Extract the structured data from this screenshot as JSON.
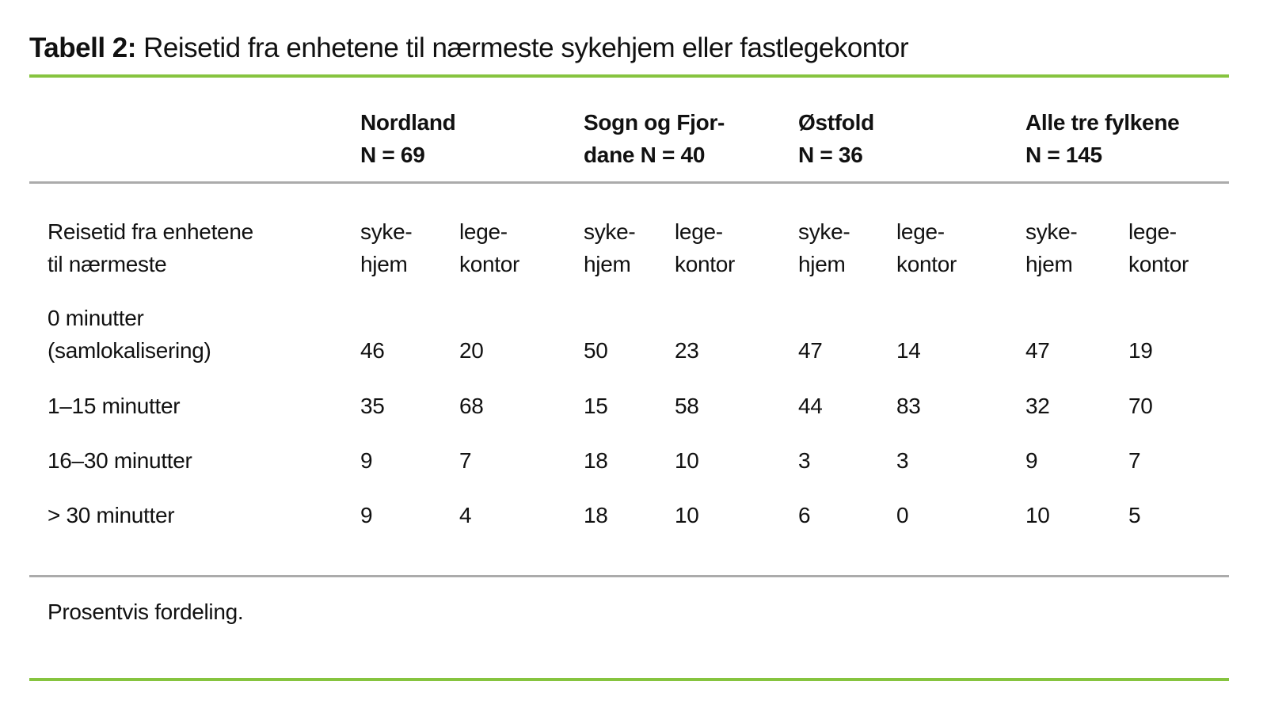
{
  "page": {
    "title_prefix": "Tabell 2:",
    "title_rest": " Reisetid fra enhetene til nærmeste sykehjem eller fastlegekontor",
    "footnote": "Prosentvis fordeling."
  },
  "colors": {
    "accent_green": "#86C43F",
    "rule_gray": "#ABABAB",
    "text": "#111111"
  },
  "table": {
    "row_header": {
      "line1": "Reisetid fra enhetene",
      "line2": "til nærmeste"
    },
    "groups": [
      {
        "line1": "Nordland",
        "line2": "N = 69"
      },
      {
        "line1": "Sogn og Fjor-",
        "line2": "dane N = 40"
      },
      {
        "line1": "Østfold",
        "line2": "N = 36"
      },
      {
        "line1": "Alle tre fylkene",
        "line2": "N = 145"
      }
    ],
    "subcols": {
      "sykehjem": {
        "line1": "syke-",
        "line2": "hjem"
      },
      "legekontor": {
        "line1": "lege-",
        "line2": "kontor"
      }
    },
    "rows": [
      {
        "label1": "0 minutter",
        "label2": "(samlokalisering)",
        "values": [
          "46",
          "20",
          "50",
          "23",
          "47",
          "14",
          "47",
          "19"
        ]
      },
      {
        "label1": "1–15 minutter",
        "values": [
          "35",
          "68",
          "15",
          "58",
          "44",
          "83",
          "32",
          "70"
        ]
      },
      {
        "label1": "16–30 minutter",
        "values": [
          "9",
          "7",
          "18",
          "10",
          "3",
          "3",
          "9",
          "7"
        ]
      },
      {
        "label1": "> 30 minutter",
        "values": [
          "9",
          "4",
          "18",
          "10",
          "6",
          "0",
          "10",
          "5"
        ]
      }
    ]
  }
}
